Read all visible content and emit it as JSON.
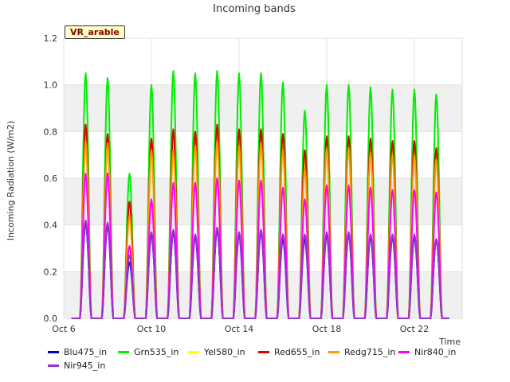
{
  "site_label": "VR_arable",
  "chart_data": {
    "type": "line",
    "title": "Incoming bands",
    "xlabel": "Time",
    "ylabel": "Incoming Radiation (W/m2)",
    "ylim": [
      0,
      1.2
    ],
    "xlim": [
      "Oct 6",
      "Oct 24"
    ],
    "x_ticks": [
      "Oct 6",
      "Oct 10",
      "Oct 14",
      "Oct 18",
      "Oct 22"
    ],
    "y_ticks": [
      "0.0",
      "0.2",
      "0.4",
      "0.6",
      "0.8",
      "1.0",
      "1.2"
    ],
    "grid": true,
    "legend_position": "bottom",
    "days": [
      "Oct 7",
      "Oct 8",
      "Oct 9",
      "Oct 10",
      "Oct 11",
      "Oct 12",
      "Oct 13",
      "Oct 14",
      "Oct 15",
      "Oct 16",
      "Oct 17",
      "Oct 18",
      "Oct 19",
      "Oct 20",
      "Oct 21",
      "Oct 22",
      "Oct 23"
    ],
    "series": [
      {
        "name": "Blu475_in",
        "color": "#0000cc",
        "daily_peak": [
          0.41,
          0.4,
          0.24,
          0.36,
          0.37,
          0.35,
          0.38,
          0.36,
          0.37,
          0.34,
          0.34,
          0.36,
          0.36,
          0.35,
          0.35,
          0.35,
          0.34
        ]
      },
      {
        "name": "Grn535_in",
        "color": "#00ee00",
        "daily_peak": [
          1.05,
          1.03,
          0.62,
          1.0,
          1.06,
          1.05,
          1.06,
          1.05,
          1.05,
          1.01,
          0.89,
          1.0,
          1.0,
          0.99,
          0.98,
          0.98,
          0.96
        ]
      },
      {
        "name": "Yel580_in",
        "color": "#ffff00",
        "daily_peak": [
          0.8,
          0.76,
          0.46,
          0.75,
          0.78,
          0.78,
          0.8,
          0.78,
          0.78,
          0.75,
          0.68,
          0.75,
          0.75,
          0.74,
          0.73,
          0.73,
          0.71
        ]
      },
      {
        "name": "Red655_in",
        "color": "#dd0000",
        "daily_peak": [
          0.83,
          0.79,
          0.5,
          0.77,
          0.81,
          0.8,
          0.83,
          0.81,
          0.81,
          0.79,
          0.72,
          0.78,
          0.78,
          0.77,
          0.76,
          0.76,
          0.73
        ]
      },
      {
        "name": "Redg715_in",
        "color": "#ff9900",
        "daily_peak": [
          0.76,
          0.75,
          0.44,
          0.72,
          0.72,
          0.74,
          0.76,
          0.74,
          0.75,
          0.72,
          0.64,
          0.73,
          0.73,
          0.71,
          0.7,
          0.7,
          0.68
        ]
      },
      {
        "name": "Nir840_in",
        "color": "#ff00ff",
        "daily_peak": [
          0.62,
          0.62,
          0.31,
          0.51,
          0.58,
          0.58,
          0.6,
          0.59,
          0.59,
          0.56,
          0.51,
          0.57,
          0.57,
          0.56,
          0.55,
          0.55,
          0.54
        ]
      },
      {
        "name": "Nir945_in",
        "color": "#9933cc",
        "daily_peak": [
          0.42,
          0.41,
          0.27,
          0.37,
          0.38,
          0.36,
          0.39,
          0.37,
          0.38,
          0.36,
          0.36,
          0.37,
          0.37,
          0.36,
          0.36,
          0.36,
          0.34
        ]
      }
    ]
  }
}
